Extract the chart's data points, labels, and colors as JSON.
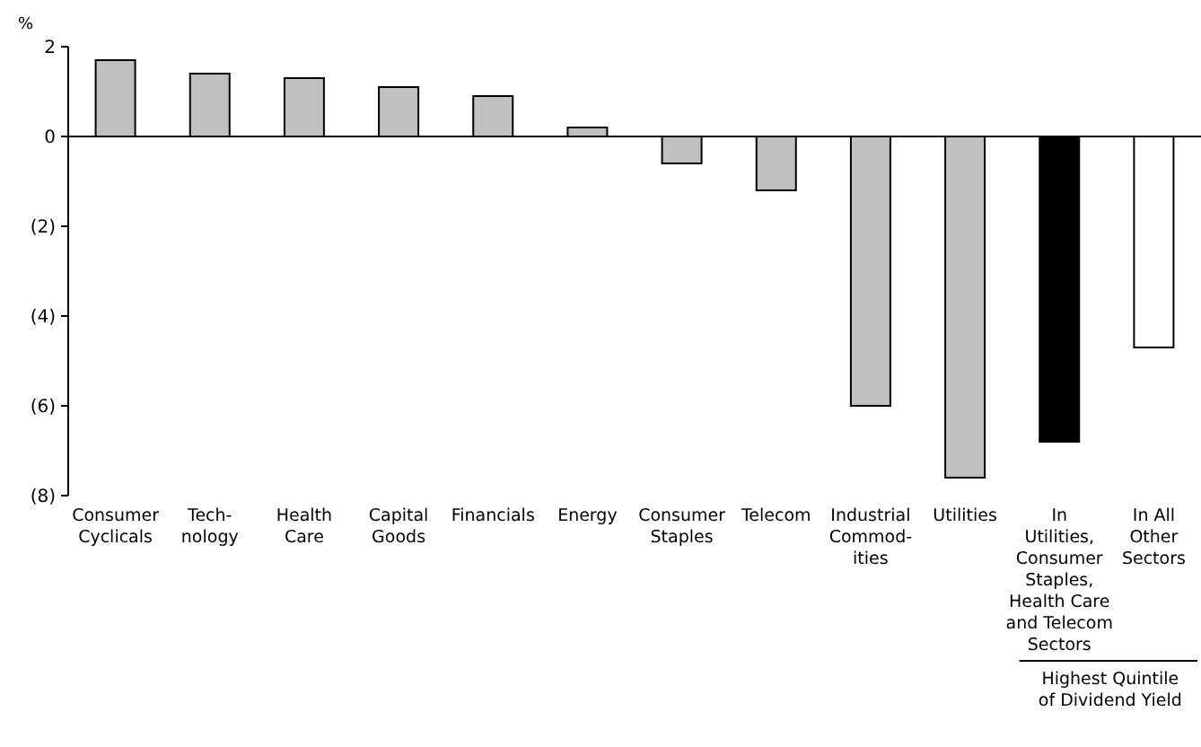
{
  "chart_data": {
    "type": "bar",
    "ylabel": "%",
    "categories": [
      "Consumer\nCyclicals",
      "Tech-\nnology",
      "Health\nCare",
      "Capital\nGoods",
      "Financials",
      "Energy",
      "Consumer\nStaples",
      "Telecom",
      "Industrial\nCommod-\nities",
      "Utilities",
      "In\nUtilities,\nConsumer\nStaples,\nHealth Care\nand Telecom\nSectors",
      "In All\nOther\nSectors"
    ],
    "values": [
      1.7,
      1.4,
      1.3,
      1.1,
      0.9,
      0.2,
      -0.6,
      -1.2,
      -6.0,
      -7.6,
      -6.8,
      -4.7
    ],
    "colors": [
      "#c0c0c0",
      "#c0c0c0",
      "#c0c0c0",
      "#c0c0c0",
      "#c0c0c0",
      "#c0c0c0",
      "#c0c0c0",
      "#c0c0c0",
      "#c0c0c0",
      "#c0c0c0",
      "#000000",
      "#ffffff"
    ],
    "ylim": [
      -8,
      2
    ],
    "yticks": [
      {
        "value": -8,
        "label": "(8)"
      },
      {
        "value": -6,
        "label": "(6)"
      },
      {
        "value": -4,
        "label": "(4)"
      },
      {
        "value": -2,
        "label": "(2)"
      },
      0,
      2
    ],
    "annotations": [
      "Highest Quintile\nof Dividend Yield"
    ]
  }
}
